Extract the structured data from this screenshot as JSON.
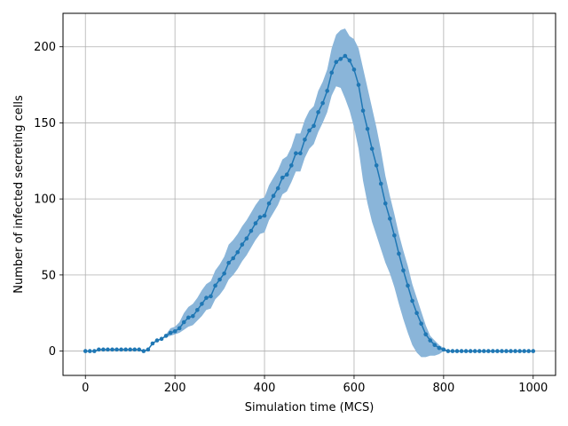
{
  "chart_data": {
    "type": "line",
    "title": "",
    "xlabel": "Simulation time (MCS)",
    "ylabel": "Number of infected secreting cells",
    "xlim": [
      -50,
      1050
    ],
    "ylim": [
      -16,
      222
    ],
    "xticks": [
      0,
      200,
      400,
      600,
      800,
      1000
    ],
    "yticks": [
      0,
      50,
      100,
      150,
      200
    ],
    "grid": true,
    "legend": "none",
    "series": [
      {
        "color": "#1f77b4",
        "band_color": "#8ab5d9",
        "x": [
          0,
          10,
          20,
          30,
          40,
          50,
          60,
          70,
          80,
          90,
          100,
          110,
          120,
          130,
          140,
          150,
          160,
          170,
          180,
          190,
          200,
          210,
          220,
          230,
          240,
          250,
          260,
          270,
          280,
          290,
          300,
          310,
          320,
          330,
          340,
          350,
          360,
          370,
          380,
          390,
          400,
          410,
          420,
          430,
          440,
          450,
          460,
          470,
          480,
          490,
          500,
          510,
          520,
          530,
          540,
          550,
          560,
          570,
          580,
          590,
          600,
          610,
          620,
          630,
          640,
          650,
          660,
          670,
          680,
          690,
          700,
          710,
          720,
          730,
          740,
          750,
          760,
          770,
          780,
          790,
          800,
          810,
          820,
          830,
          840,
          850,
          860,
          870,
          880,
          890,
          900,
          910,
          920,
          930,
          940,
          950,
          960,
          970,
          980,
          990,
          1000
        ],
        "y": [
          0,
          0,
          0,
          1,
          1,
          1,
          1,
          1,
          1,
          1,
          1,
          1,
          1,
          0,
          1,
          5,
          7,
          8,
          10,
          12,
          13,
          15,
          19,
          22,
          23,
          27,
          31,
          35,
          36,
          43,
          47,
          51,
          58,
          61,
          65,
          70,
          74,
          79,
          84,
          88,
          89,
          97,
          102,
          107,
          114,
          116,
          122,
          130,
          130,
          139,
          145,
          148,
          157,
          163,
          171,
          183,
          190,
          192,
          194,
          191,
          185,
          175,
          158,
          146,
          133,
          122,
          110,
          97,
          87,
          76,
          64,
          53,
          43,
          33,
          25,
          18,
          11,
          7,
          4,
          2,
          1,
          0,
          0,
          0,
          0,
          0,
          0,
          0,
          0,
          0,
          0,
          0,
          0,
          0,
          0,
          0,
          0,
          0,
          0,
          0,
          0
        ],
        "lower": [
          0,
          0,
          0,
          1,
          1,
          1,
          1,
          1,
          1,
          1,
          1,
          1,
          1,
          0,
          1,
          5,
          7,
          8,
          9,
          10,
          11,
          12,
          14,
          16,
          17,
          20,
          23,
          27,
          28,
          34,
          37,
          41,
          47,
          50,
          54,
          59,
          63,
          68,
          73,
          77,
          78,
          86,
          91,
          96,
          103,
          105,
          111,
          118,
          118,
          127,
          133,
          136,
          144,
          150,
          157,
          168,
          174,
          173,
          166,
          158,
          147,
          133,
          112,
          97,
          85,
          76,
          67,
          58,
          51,
          42,
          31,
          21,
          12,
          4,
          -1,
          -4,
          -4,
          -3,
          -3,
          -2,
          0,
          0,
          0,
          0,
          0,
          0,
          0,
          0,
          0,
          0,
          0,
          0,
          0,
          0,
          0,
          0,
          0,
          0,
          0,
          0,
          0
        ],
        "upper": [
          0,
          0,
          0,
          1,
          1,
          1,
          1,
          1,
          1,
          1,
          1,
          1,
          1,
          0,
          1,
          5,
          7,
          8,
          11,
          15,
          16,
          19,
          25,
          29,
          31,
          35,
          40,
          44,
          46,
          53,
          57,
          62,
          70,
          73,
          77,
          82,
          86,
          91,
          96,
          100,
          101,
          109,
          114,
          119,
          126,
          128,
          134,
          143,
          143,
          152,
          158,
          161,
          171,
          177,
          185,
          199,
          208,
          211,
          212,
          207,
          205,
          199,
          186,
          173,
          160,
          147,
          132,
          115,
          102,
          90,
          77,
          66,
          56,
          44,
          35,
          26,
          17,
          10,
          7,
          4,
          2,
          0,
          0,
          0,
          0,
          0,
          0,
          0,
          0,
          0,
          0,
          0,
          0,
          0,
          0,
          0,
          0,
          0,
          0,
          0,
          0
        ]
      }
    ]
  }
}
